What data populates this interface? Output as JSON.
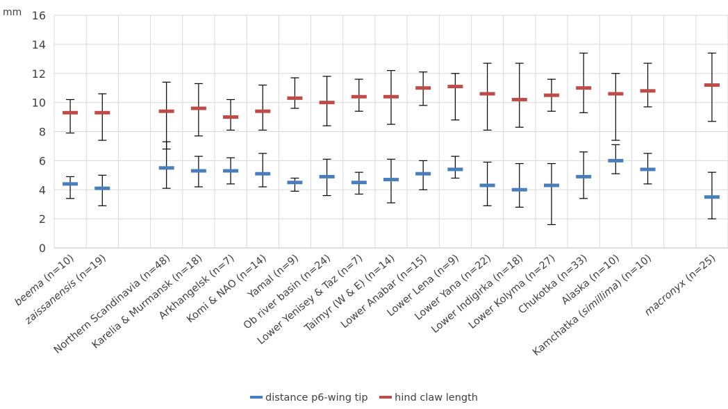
{
  "chart_data": {
    "type": "error-bar",
    "ylabel": "mm",
    "ylim": [
      0,
      16
    ],
    "yticks": [
      0,
      2,
      4,
      6,
      8,
      10,
      12,
      14,
      16
    ],
    "grid": true,
    "legend_position": "bottom",
    "categories": [
      {
        "name": "beema",
        "n": "(n=10)",
        "italic": true
      },
      {
        "name": "zaissanensis",
        "n": "(n=19)",
        "italic": true
      },
      {
        "name": "",
        "n": "",
        "italic": false
      },
      {
        "name": "Northern Scandinavia",
        "n": "(n=48)",
        "italic": false
      },
      {
        "name": "Karelia & Murmansk",
        "n": "(n=18)",
        "italic": false
      },
      {
        "name": "Arkhangelsk",
        "n": "(n=7)",
        "italic": false
      },
      {
        "name": "Komi & NAO",
        "n": "(n=14)",
        "italic": false
      },
      {
        "name": "Yamal",
        "n": "(n=9)",
        "italic": false
      },
      {
        "name": "Ob river basin",
        "n": "(n=24)",
        "italic": false
      },
      {
        "name": "Lower Yenisey & Taz",
        "n": "(n=7)",
        "italic": false
      },
      {
        "name": "Taimyr (W & E)",
        "n": "(n=14)",
        "italic": false
      },
      {
        "name": "Lower Anabar",
        "n": "(n=15)",
        "italic": false
      },
      {
        "name": "Lower Lena",
        "n": "(n=9)",
        "italic": false
      },
      {
        "name": "Lower Yana",
        "n": "(n=22)",
        "italic": false
      },
      {
        "name": "Lower Indigirka",
        "n": "(n=18)",
        "italic": false
      },
      {
        "name": "Lower Kolyma",
        "n": "(n=27)",
        "italic": false
      },
      {
        "name": "Chukotka",
        "n": "(n=33)",
        "italic": false
      },
      {
        "name": "Alaska",
        "n": "(n=10)",
        "italic": false
      },
      {
        "name": "Kamchatka (",
        "italic_part": "simillima",
        "suffix": ")",
        "n": "(n=10)",
        "italic": false
      },
      {
        "name": "",
        "n": "",
        "italic": false
      },
      {
        "name": "macronyx",
        "n": "(n=25)",
        "italic": true
      }
    ],
    "series": [
      {
        "name": "distance p6-wing tip",
        "color": "#4a7ebb",
        "mean": [
          4.4,
          4.1,
          null,
          5.5,
          5.3,
          5.3,
          5.1,
          4.5,
          4.9,
          4.5,
          4.7,
          5.1,
          5.4,
          4.3,
          4.0,
          4.3,
          4.9,
          6.0,
          5.4,
          null,
          3.5
        ],
        "min": [
          3.4,
          2.9,
          null,
          4.1,
          4.2,
          4.4,
          4.2,
          3.9,
          3.6,
          3.7,
          3.1,
          4.0,
          4.8,
          2.9,
          2.8,
          1.6,
          3.4,
          5.1,
          4.4,
          null,
          2.0
        ],
        "max": [
          4.9,
          5.0,
          null,
          7.3,
          6.3,
          6.2,
          6.5,
          4.8,
          6.1,
          5.2,
          6.1,
          6.0,
          6.3,
          5.9,
          5.8,
          5.8,
          6.6,
          7.1,
          6.5,
          null,
          5.2
        ]
      },
      {
        "name": "hind claw length",
        "color": "#be4b48",
        "mean": [
          9.3,
          9.3,
          null,
          9.4,
          9.6,
          9.0,
          9.4,
          10.3,
          10.0,
          10.4,
          10.4,
          11.0,
          11.1,
          10.6,
          10.2,
          10.5,
          11.0,
          10.6,
          10.8,
          null,
          11.2
        ],
        "min": [
          7.9,
          7.4,
          null,
          6.8,
          7.7,
          8.1,
          8.1,
          9.6,
          8.4,
          9.4,
          8.5,
          9.8,
          8.8,
          8.1,
          8.3,
          9.4,
          9.3,
          7.4,
          9.7,
          null,
          8.7
        ],
        "max": [
          10.2,
          10.6,
          null,
          11.4,
          11.3,
          10.2,
          11.2,
          11.7,
          11.8,
          11.6,
          12.2,
          12.1,
          12.0,
          12.7,
          12.7,
          11.6,
          13.4,
          12.0,
          12.7,
          null,
          13.4
        ]
      }
    ]
  },
  "legend": [
    {
      "label": "distance p6-wing tip",
      "color": "#4a7ebb"
    },
    {
      "label": "hind claw length",
      "color": "#be4b48"
    }
  ]
}
